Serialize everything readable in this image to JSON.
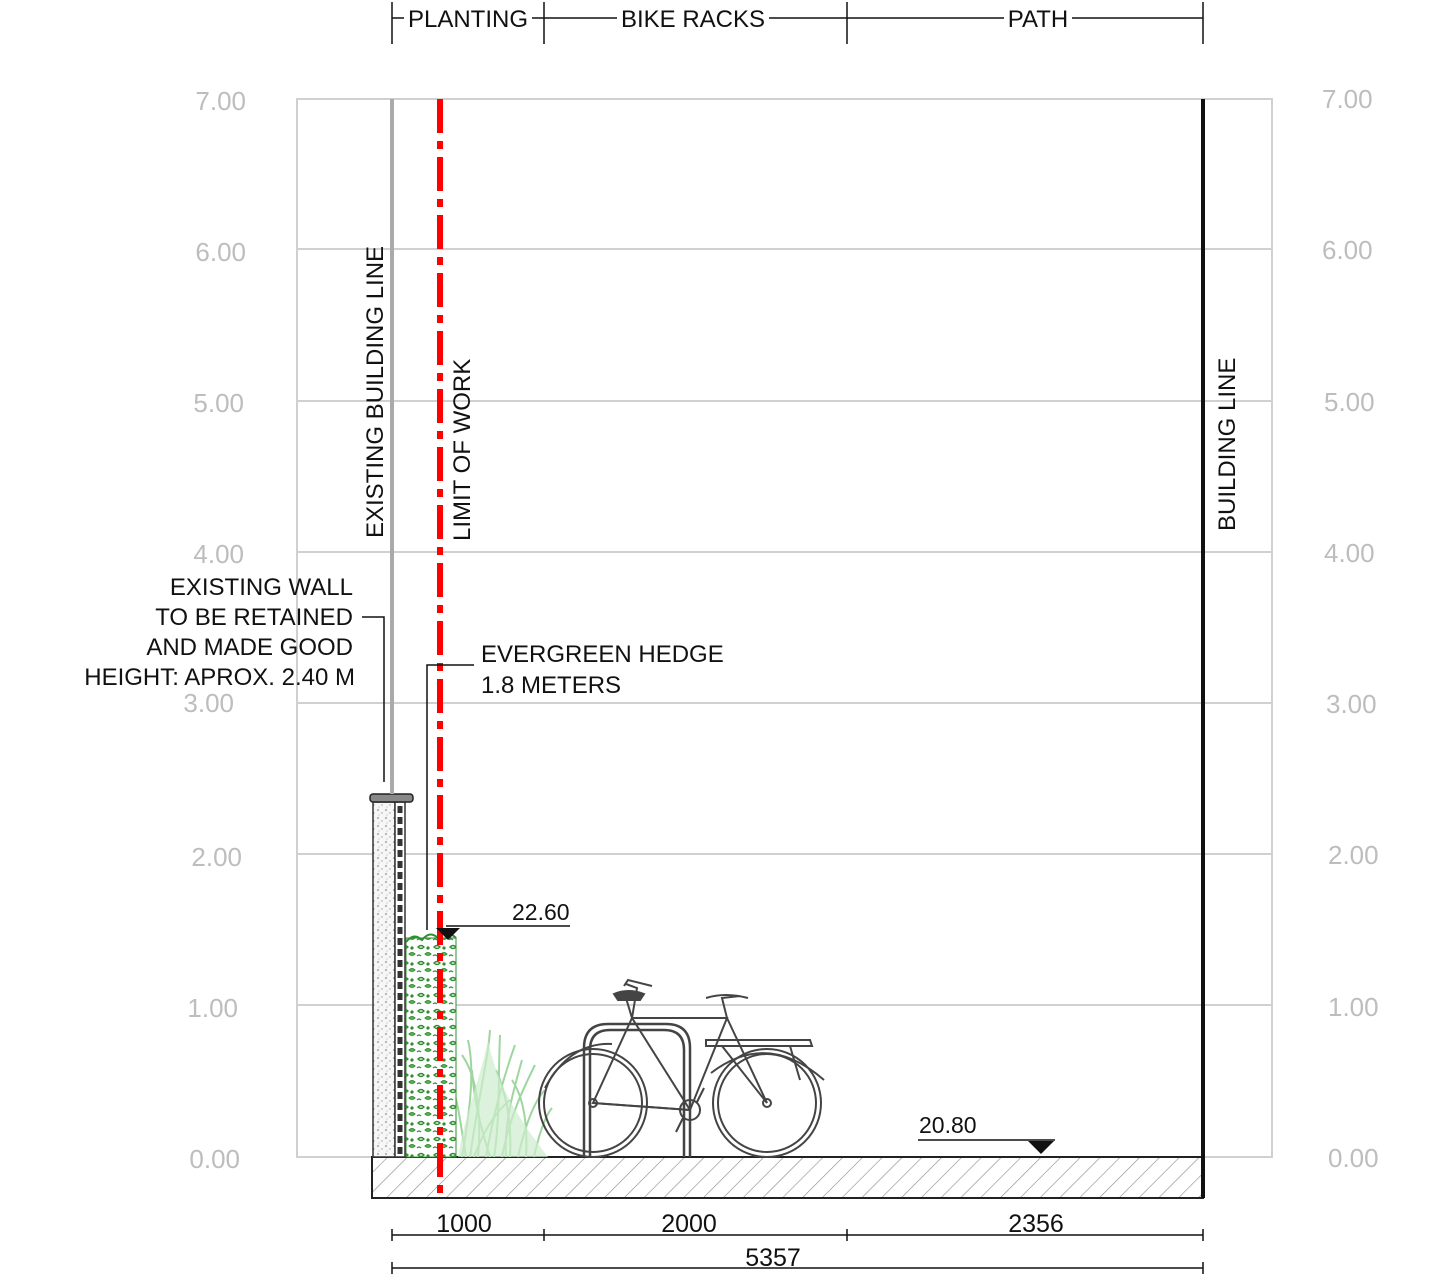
{
  "axis": {
    "left_labels": [
      "7.00",
      "6.00",
      "5.00",
      "4.00",
      "3.00",
      "2.00",
      "1.00",
      "0.00"
    ],
    "right_labels": [
      "7.00",
      "6.00",
      "5.00",
      "4.00",
      "3.00",
      "2.00",
      "1.00",
      "0.00"
    ]
  },
  "zones": {
    "planting": "PLANTING",
    "bike_racks": "BIKE RACKS",
    "path": "PATH"
  },
  "labels": {
    "existing_building_line": "EXISTING BUILDING LINE",
    "limit_of_work": "LIMIT OF WORK",
    "building_line": "BUILDING LINE",
    "wall_note": [
      "EXISTING WALL",
      "TO BE RETAINED",
      "AND MADE GOOD",
      "HEIGHT: APROX. 2.40 M"
    ],
    "hedge_note": [
      "EVERGREEN HEDGE",
      "1.8 METERS"
    ]
  },
  "levels": {
    "hedge_top": "22.60",
    "ground": "20.80"
  },
  "dimensions": {
    "planting": "1000",
    "bike_racks": "2000",
    "path": "2356",
    "total": "5357"
  },
  "colors": {
    "grid": "#d0d0d0",
    "axis_text": "#bdbdbd",
    "limit_of_work": "#ff0000",
    "existing_building_line": "#aaaaaa",
    "hedge": "#3a9a3a",
    "grass": "#9fd69f",
    "ink": "#111111"
  }
}
